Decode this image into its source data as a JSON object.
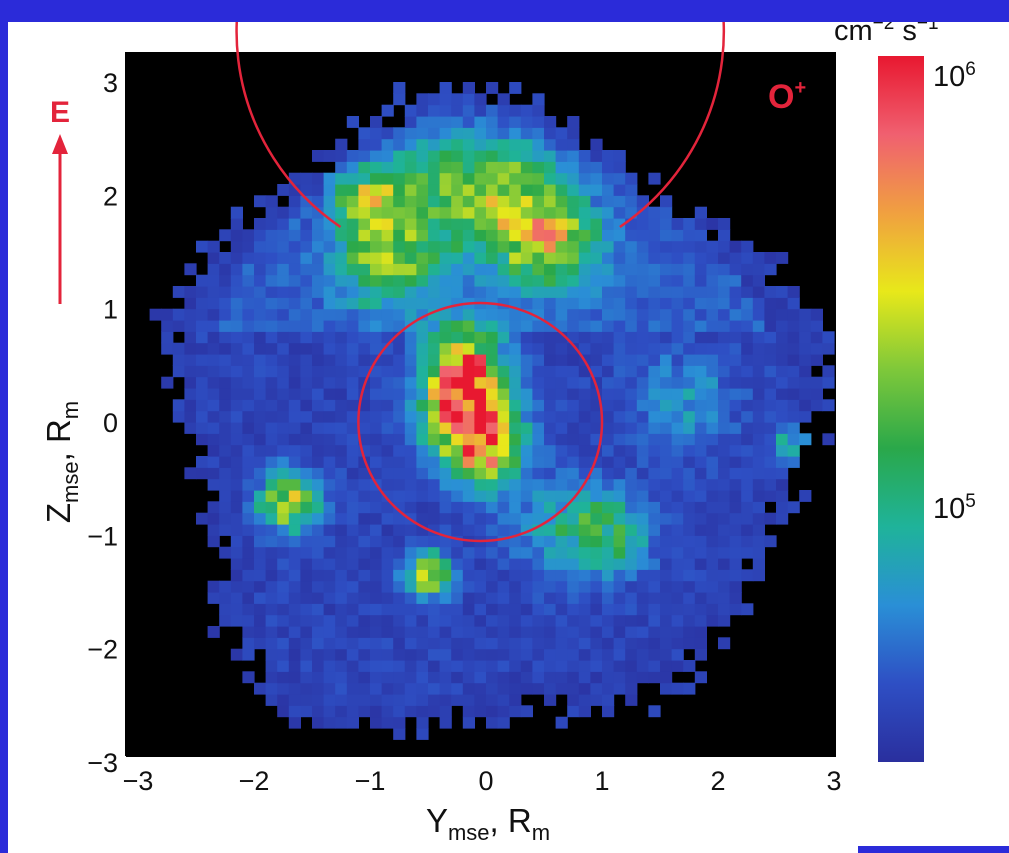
{
  "chart_data": {
    "type": "heatmap",
    "title": "",
    "species": "O",
    "species_charge": "+",
    "xlabel": {
      "main": "Y",
      "sub": "mse",
      "sep": ", ",
      "unit": "R",
      "unit_sub": "m"
    },
    "ylabel": {
      "main": "Z",
      "sub": "mse",
      "sep": ", ",
      "unit": "R",
      "unit_sub": "m"
    },
    "xlim": [
      -3,
      3
    ],
    "ylim": [
      -3,
      3
    ],
    "xticks": [
      "−3",
      "−2",
      "−1",
      "0",
      "1",
      "2",
      "3"
    ],
    "yticks": [
      "3",
      "2",
      "1",
      "0",
      "−1",
      "−2",
      "−3"
    ],
    "direction_arrow": {
      "label": "E",
      "direction": "up"
    },
    "circles": [
      {
        "center": [
          -0.05,
          0.0
        ],
        "radius": 1.05,
        "color": "#e3243b",
        "full": true
      },
      {
        "center": [
          -0.05,
          0.0
        ],
        "radius": 2.1,
        "color": "#e3243b",
        "full": false,
        "gap_top_deg": 70
      }
    ],
    "grid": false,
    "colorbar": {
      "scale": "log",
      "range": [
        30000,
        1000000
      ],
      "unit": {
        "base1": "cm",
        "exp1": "−2",
        "base2": " s",
        "exp2": "−1"
      },
      "labels": [
        {
          "base": "10",
          "exp": "6",
          "value": 1000000
        },
        {
          "base": "10",
          "exp": "5",
          "value": 100000
        }
      ],
      "colors": [
        "#2a2f9e",
        "#2e4fc4",
        "#2a8fd6",
        "#1fb39a",
        "#2aa84a",
        "#7ec83a",
        "#e8e81a",
        "#f0a040",
        "#f06070",
        "#e81830"
      ]
    },
    "hotspots": [
      {
        "y": -0.15,
        "z": 0.05,
        "sigma": 0.25,
        "amp": 3.2
      },
      {
        "y": -0.2,
        "z": 0.55,
        "sigma": 0.22,
        "amp": 2.5
      },
      {
        "y": 0.0,
        "z": -0.3,
        "sigma": 0.22,
        "amp": 1.6
      },
      {
        "y": -0.85,
        "z": 1.45,
        "sigma": 0.3,
        "amp": 1.5
      },
      {
        "y": 0.55,
        "z": 1.6,
        "sigma": 0.3,
        "amp": 1.6
      },
      {
        "y": -0.4,
        "z": 2.1,
        "sigma": 0.35,
        "amp": 1.1
      },
      {
        "y": 0.2,
        "z": 2.0,
        "sigma": 0.35,
        "amp": 1.1
      },
      {
        "y": -1.7,
        "z": -0.7,
        "sigma": 0.18,
        "amp": 1.9
      },
      {
        "y": -0.5,
        "z": -1.35,
        "sigma": 0.14,
        "amp": 2.0
      },
      {
        "y": 1.05,
        "z": -1.0,
        "sigma": 0.25,
        "amp": 1.2
      },
      {
        "y": 1.7,
        "z": 0.2,
        "sigma": 0.3,
        "amp": 0.6
      },
      {
        "y": 2.65,
        "z": -0.2,
        "sigma": 0.12,
        "amp": 1.1
      },
      {
        "y": -1.05,
        "z": 2.0,
        "sigma": 0.18,
        "amp": 1.6
      },
      {
        "y": 0.6,
        "z": -0.9,
        "sigma": 0.3,
        "amp": 0.6
      }
    ]
  }
}
